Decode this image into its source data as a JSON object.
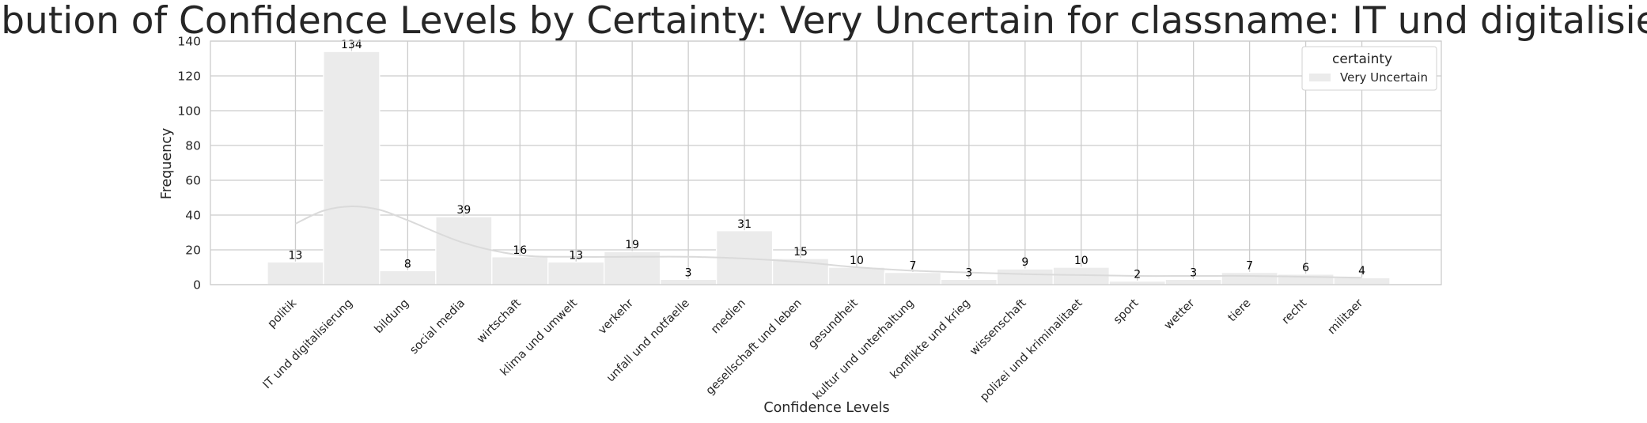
{
  "chart_data": {
    "type": "bar",
    "title": "Distribution of Confidence Levels by Certainty: Very Uncertain for classname: IT und digitalisierung",
    "xlabel": "Confidence Levels",
    "ylabel": "Frequency",
    "ylim": [
      0,
      140
    ],
    "yticks": [
      0,
      20,
      40,
      60,
      80,
      100,
      120,
      140
    ],
    "grid": true,
    "legend_position": "top-right",
    "legend_title": "certainty",
    "categories": [
      "politik",
      "IT und digitalisierung",
      "bildung",
      "social media",
      "wirtschaft",
      "klima und umwelt",
      "verkehr",
      "unfall und notfaelle",
      "medien",
      "gesellschaft und leben",
      "gesundheit",
      "kultur und unterhaltung",
      "konflikte und krieg",
      "wissenschaft",
      "polizei und kriminalitaet",
      "sport",
      "wetter",
      "tiere",
      "recht",
      "militaer"
    ],
    "series": [
      {
        "name": "Very Uncertain",
        "color": "#ebebeb",
        "values": [
          13,
          134,
          8,
          39,
          16,
          13,
          19,
          3,
          31,
          15,
          10,
          7,
          3,
          9,
          10,
          2,
          3,
          7,
          6,
          4
        ]
      }
    ],
    "kde": {
      "color": "#dadada",
      "x": [
        0,
        0.5,
        1,
        1.5,
        2,
        3,
        4,
        5,
        6,
        7,
        8,
        9,
        10,
        11,
        12,
        13,
        14,
        15,
        16,
        17,
        18,
        19
      ],
      "y": [
        35,
        42.5,
        45,
        43,
        37,
        24,
        17,
        16,
        16,
        16,
        15,
        13,
        10,
        8,
        7,
        6,
        5.5,
        5,
        5,
        5,
        4.5,
        4
      ]
    }
  }
}
